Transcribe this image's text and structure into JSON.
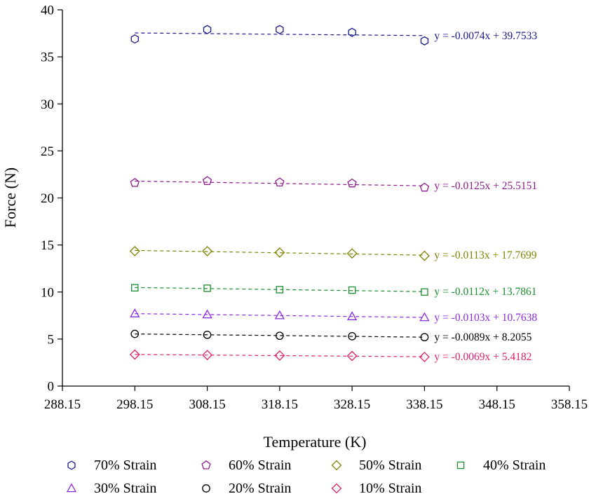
{
  "chart_data": {
    "type": "scatter",
    "title": "",
    "xlabel": "Temperature (K)",
    "ylabel": "Force (N)",
    "xlim": [
      288.15,
      358.15
    ],
    "ylim": [
      0,
      40
    ],
    "x_ticks": [
      "288.15",
      "298.15",
      "308.15",
      "318.15",
      "328.15",
      "338.15",
      "348.15",
      "358.15"
    ],
    "y_ticks": [
      "0",
      "5",
      "10",
      "15",
      "20",
      "25",
      "30",
      "35",
      "40"
    ],
    "grid": false,
    "legend_position": "bottom",
    "x": [
      298.15,
      308.15,
      318.15,
      328.15,
      338.15
    ],
    "series": [
      {
        "name": "70% Strain",
        "marker": "hexagon",
        "color": "#1a1a8c",
        "values": [
          36.9,
          37.9,
          37.9,
          37.6,
          36.7
        ],
        "fit_label": "y = -0.0074x + 39.7533",
        "fit": {
          "slope": -0.0074,
          "intercept": 39.7533
        }
      },
      {
        "name": "60% Strain",
        "marker": "pentagon",
        "color": "#8b1a8b",
        "values": [
          21.6,
          21.8,
          21.65,
          21.55,
          21.1
        ],
        "fit_label": "y = -0.0125x + 25.5151",
        "fit": {
          "slope": -0.0125,
          "intercept": 25.5151
        }
      },
      {
        "name": "50% Strain",
        "marker": "diamond",
        "color": "#808000",
        "values": [
          14.35,
          14.35,
          14.2,
          14.1,
          13.85
        ],
        "fit_label": "y = -0.0113x + 17.7699",
        "fit": {
          "slope": -0.0113,
          "intercept": 17.7699
        }
      },
      {
        "name": "40% Strain",
        "marker": "square",
        "color": "#1a8c2e",
        "values": [
          10.45,
          10.4,
          10.25,
          10.2,
          10.0
        ],
        "fit_label": "y = -0.0112x + 13.7861",
        "fit": {
          "slope": -0.0112,
          "intercept": 13.7861
        }
      },
      {
        "name": "30% Strain",
        "marker": "triangle",
        "color": "#8a2be2",
        "values": [
          7.7,
          7.6,
          7.5,
          7.4,
          7.3
        ],
        "fit_label": "y = -0.0103x + 10.7638",
        "fit": {
          "slope": -0.0103,
          "intercept": 10.7638
        }
      },
      {
        "name": "20% Strain",
        "marker": "circle",
        "color": "#000000",
        "values": [
          5.55,
          5.45,
          5.35,
          5.3,
          5.2
        ],
        "fit_label": "y = -0.0089x + 8.2055",
        "fit": {
          "slope": -0.0089,
          "intercept": 8.2055
        }
      },
      {
        "name": "10% Strain",
        "marker": "diamond",
        "color": "#e0206a",
        "values": [
          3.35,
          3.3,
          3.25,
          3.2,
          3.1
        ],
        "fit_label": "y = -0.0069x + 5.4182",
        "fit": {
          "slope": -0.0069,
          "intercept": 5.4182
        }
      }
    ]
  }
}
